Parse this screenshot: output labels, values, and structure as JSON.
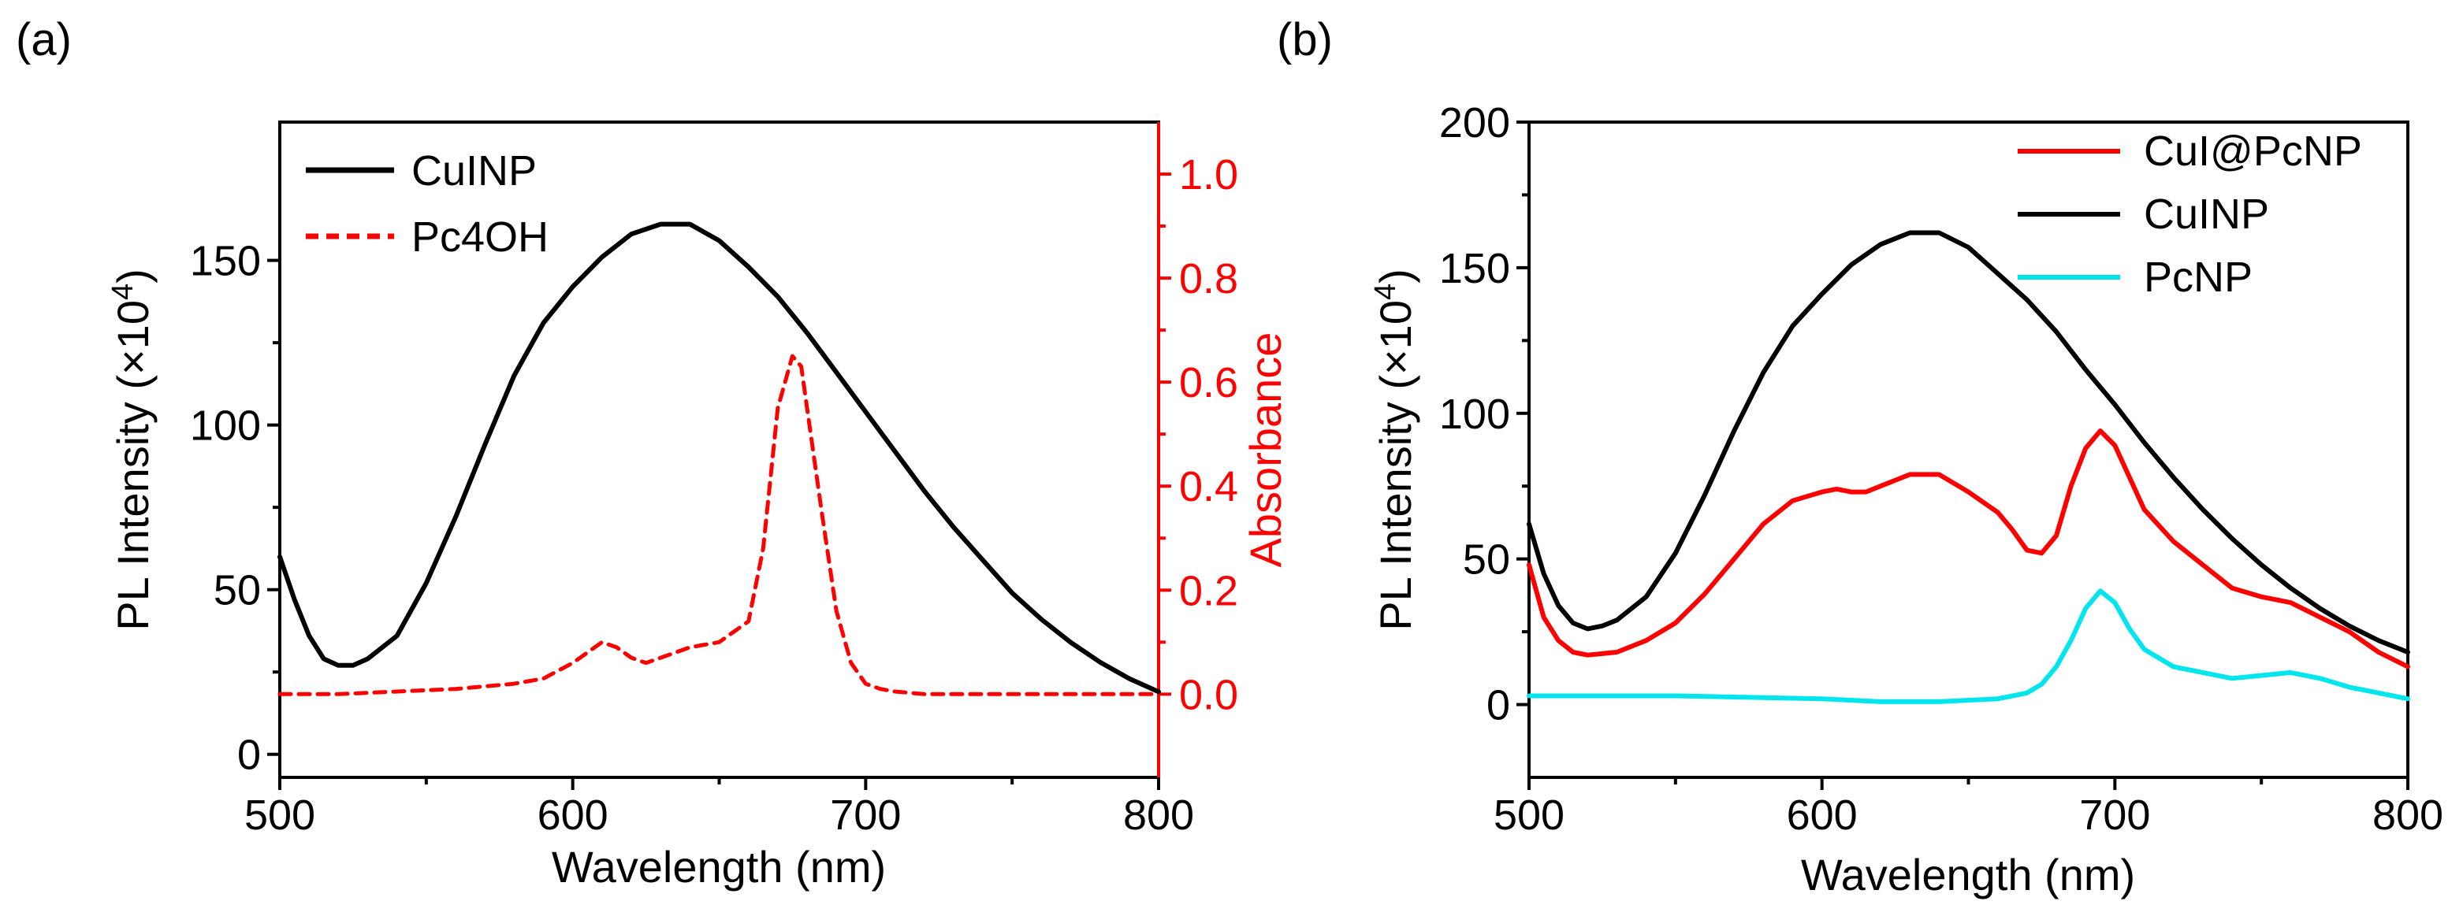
{
  "chart_data": [
    {
      "panel_label": "(a)",
      "type": "line",
      "xlabel": "Wavelength (nm)",
      "ylabel": "PL Intensity (×10",
      "ylabel_sup": "4",
      "ylabel_close": ")",
      "y2label": "Absorbance",
      "xlim": [
        500,
        800
      ],
      "ylim": [
        -7,
        192
      ],
      "y2lim": [
        -0.16,
        1.1
      ],
      "xticks": [
        500,
        600,
        700,
        800
      ],
      "yticks": [
        0,
        50,
        100,
        150
      ],
      "y2ticks": [
        "0.0",
        "0.2",
        "0.4",
        "0.6",
        "0.8",
        "1.0"
      ],
      "legend_position": "top-left",
      "colors": {
        "CuINP": "#000000",
        "Pc4OH": "#ff0000",
        "right_axis": "#ff0000"
      },
      "series": [
        {
          "name": "CuINP",
          "axis": "left",
          "style": "solid",
          "x": [
            500,
            505,
            510,
            515,
            520,
            525,
            530,
            540,
            550,
            560,
            570,
            580,
            590,
            600,
            610,
            620,
            630,
            640,
            650,
            660,
            670,
            680,
            690,
            700,
            710,
            720,
            730,
            740,
            750,
            760,
            770,
            780,
            790,
            800
          ],
          "y": [
            60,
            47,
            36,
            29,
            27,
            27,
            29,
            36,
            52,
            72,
            94,
            115,
            131,
            142,
            151,
            158,
            161,
            161,
            156,
            148,
            139,
            128,
            116,
            104,
            92,
            80,
            69,
            59,
            49,
            41,
            34,
            28,
            23,
            19
          ]
        },
        {
          "name": "Pc4OH",
          "axis": "right",
          "style": "dashed",
          "x": [
            500,
            520,
            540,
            560,
            580,
            590,
            600,
            605,
            610,
            615,
            620,
            625,
            630,
            635,
            640,
            650,
            660,
            665,
            670,
            675,
            678,
            680,
            685,
            690,
            695,
            700,
            705,
            710,
            720,
            740,
            760,
            780,
            800
          ],
          "y": [
            0,
            0,
            0.005,
            0.01,
            0.02,
            0.03,
            0.06,
            0.08,
            0.1,
            0.09,
            0.07,
            0.06,
            0.07,
            0.08,
            0.09,
            0.1,
            0.14,
            0.28,
            0.55,
            0.65,
            0.63,
            0.55,
            0.35,
            0.16,
            0.06,
            0.02,
            0.01,
            0.005,
            0,
            0,
            0,
            0,
            0
          ]
        }
      ]
    },
    {
      "panel_label": "(b)",
      "type": "line",
      "xlabel": "Wavelength (nm)",
      "ylabel": "PL Intensity (×10",
      "ylabel_sup": "4",
      "ylabel_close": ")",
      "xlim": [
        500,
        800
      ],
      "ylim": [
        -25,
        200
      ],
      "xticks": [
        500,
        600,
        700,
        800
      ],
      "yticks": [
        0,
        50,
        100,
        150,
        200
      ],
      "legend_position": "top-right",
      "colors": {
        "CuI@PcNP": "#ff0000",
        "CuINP": "#000000",
        "PcNP": "#00e5ee"
      },
      "series": [
        {
          "name": "CuI@PcNP",
          "style": "solid",
          "x": [
            500,
            505,
            510,
            515,
            520,
            530,
            540,
            550,
            560,
            570,
            580,
            590,
            600,
            605,
            610,
            615,
            620,
            630,
            640,
            650,
            660,
            665,
            670,
            675,
            680,
            685,
            690,
            695,
            700,
            705,
            710,
            720,
            730,
            740,
            750,
            760,
            770,
            780,
            790,
            800
          ],
          "y": [
            48,
            30,
            22,
            18,
            17,
            18,
            22,
            28,
            38,
            50,
            62,
            70,
            73,
            74,
            73,
            73,
            75,
            79,
            79,
            73,
            66,
            60,
            53,
            52,
            58,
            75,
            88,
            94,
            89,
            78,
            67,
            56,
            48,
            40,
            37,
            35,
            30,
            25,
            18,
            13
          ]
        },
        {
          "name": "CuINP",
          "style": "solid",
          "x": [
            500,
            505,
            510,
            515,
            520,
            525,
            530,
            540,
            550,
            560,
            570,
            580,
            590,
            600,
            610,
            620,
            630,
            640,
            650,
            660,
            670,
            680,
            690,
            700,
            710,
            720,
            730,
            740,
            750,
            760,
            770,
            780,
            790,
            800
          ],
          "y": [
            62,
            45,
            34,
            28,
            26,
            27,
            29,
            37,
            52,
            72,
            94,
            114,
            130,
            141,
            151,
            158,
            162,
            162,
            157,
            148,
            139,
            128,
            115,
            103,
            90,
            78,
            67,
            57,
            48,
            40,
            33,
            27,
            22,
            18
          ]
        },
        {
          "name": "PcNP",
          "style": "solid",
          "x": [
            500,
            550,
            600,
            620,
            640,
            660,
            670,
            675,
            680,
            685,
            690,
            695,
            700,
            705,
            710,
            720,
            730,
            740,
            750,
            760,
            770,
            780,
            790,
            800
          ],
          "y": [
            3,
            3,
            2,
            1,
            1,
            2,
            4,
            7,
            13,
            22,
            33,
            39,
            35,
            26,
            19,
            13,
            11,
            9,
            10,
            11,
            9,
            6,
            4,
            2
          ]
        }
      ]
    }
  ]
}
